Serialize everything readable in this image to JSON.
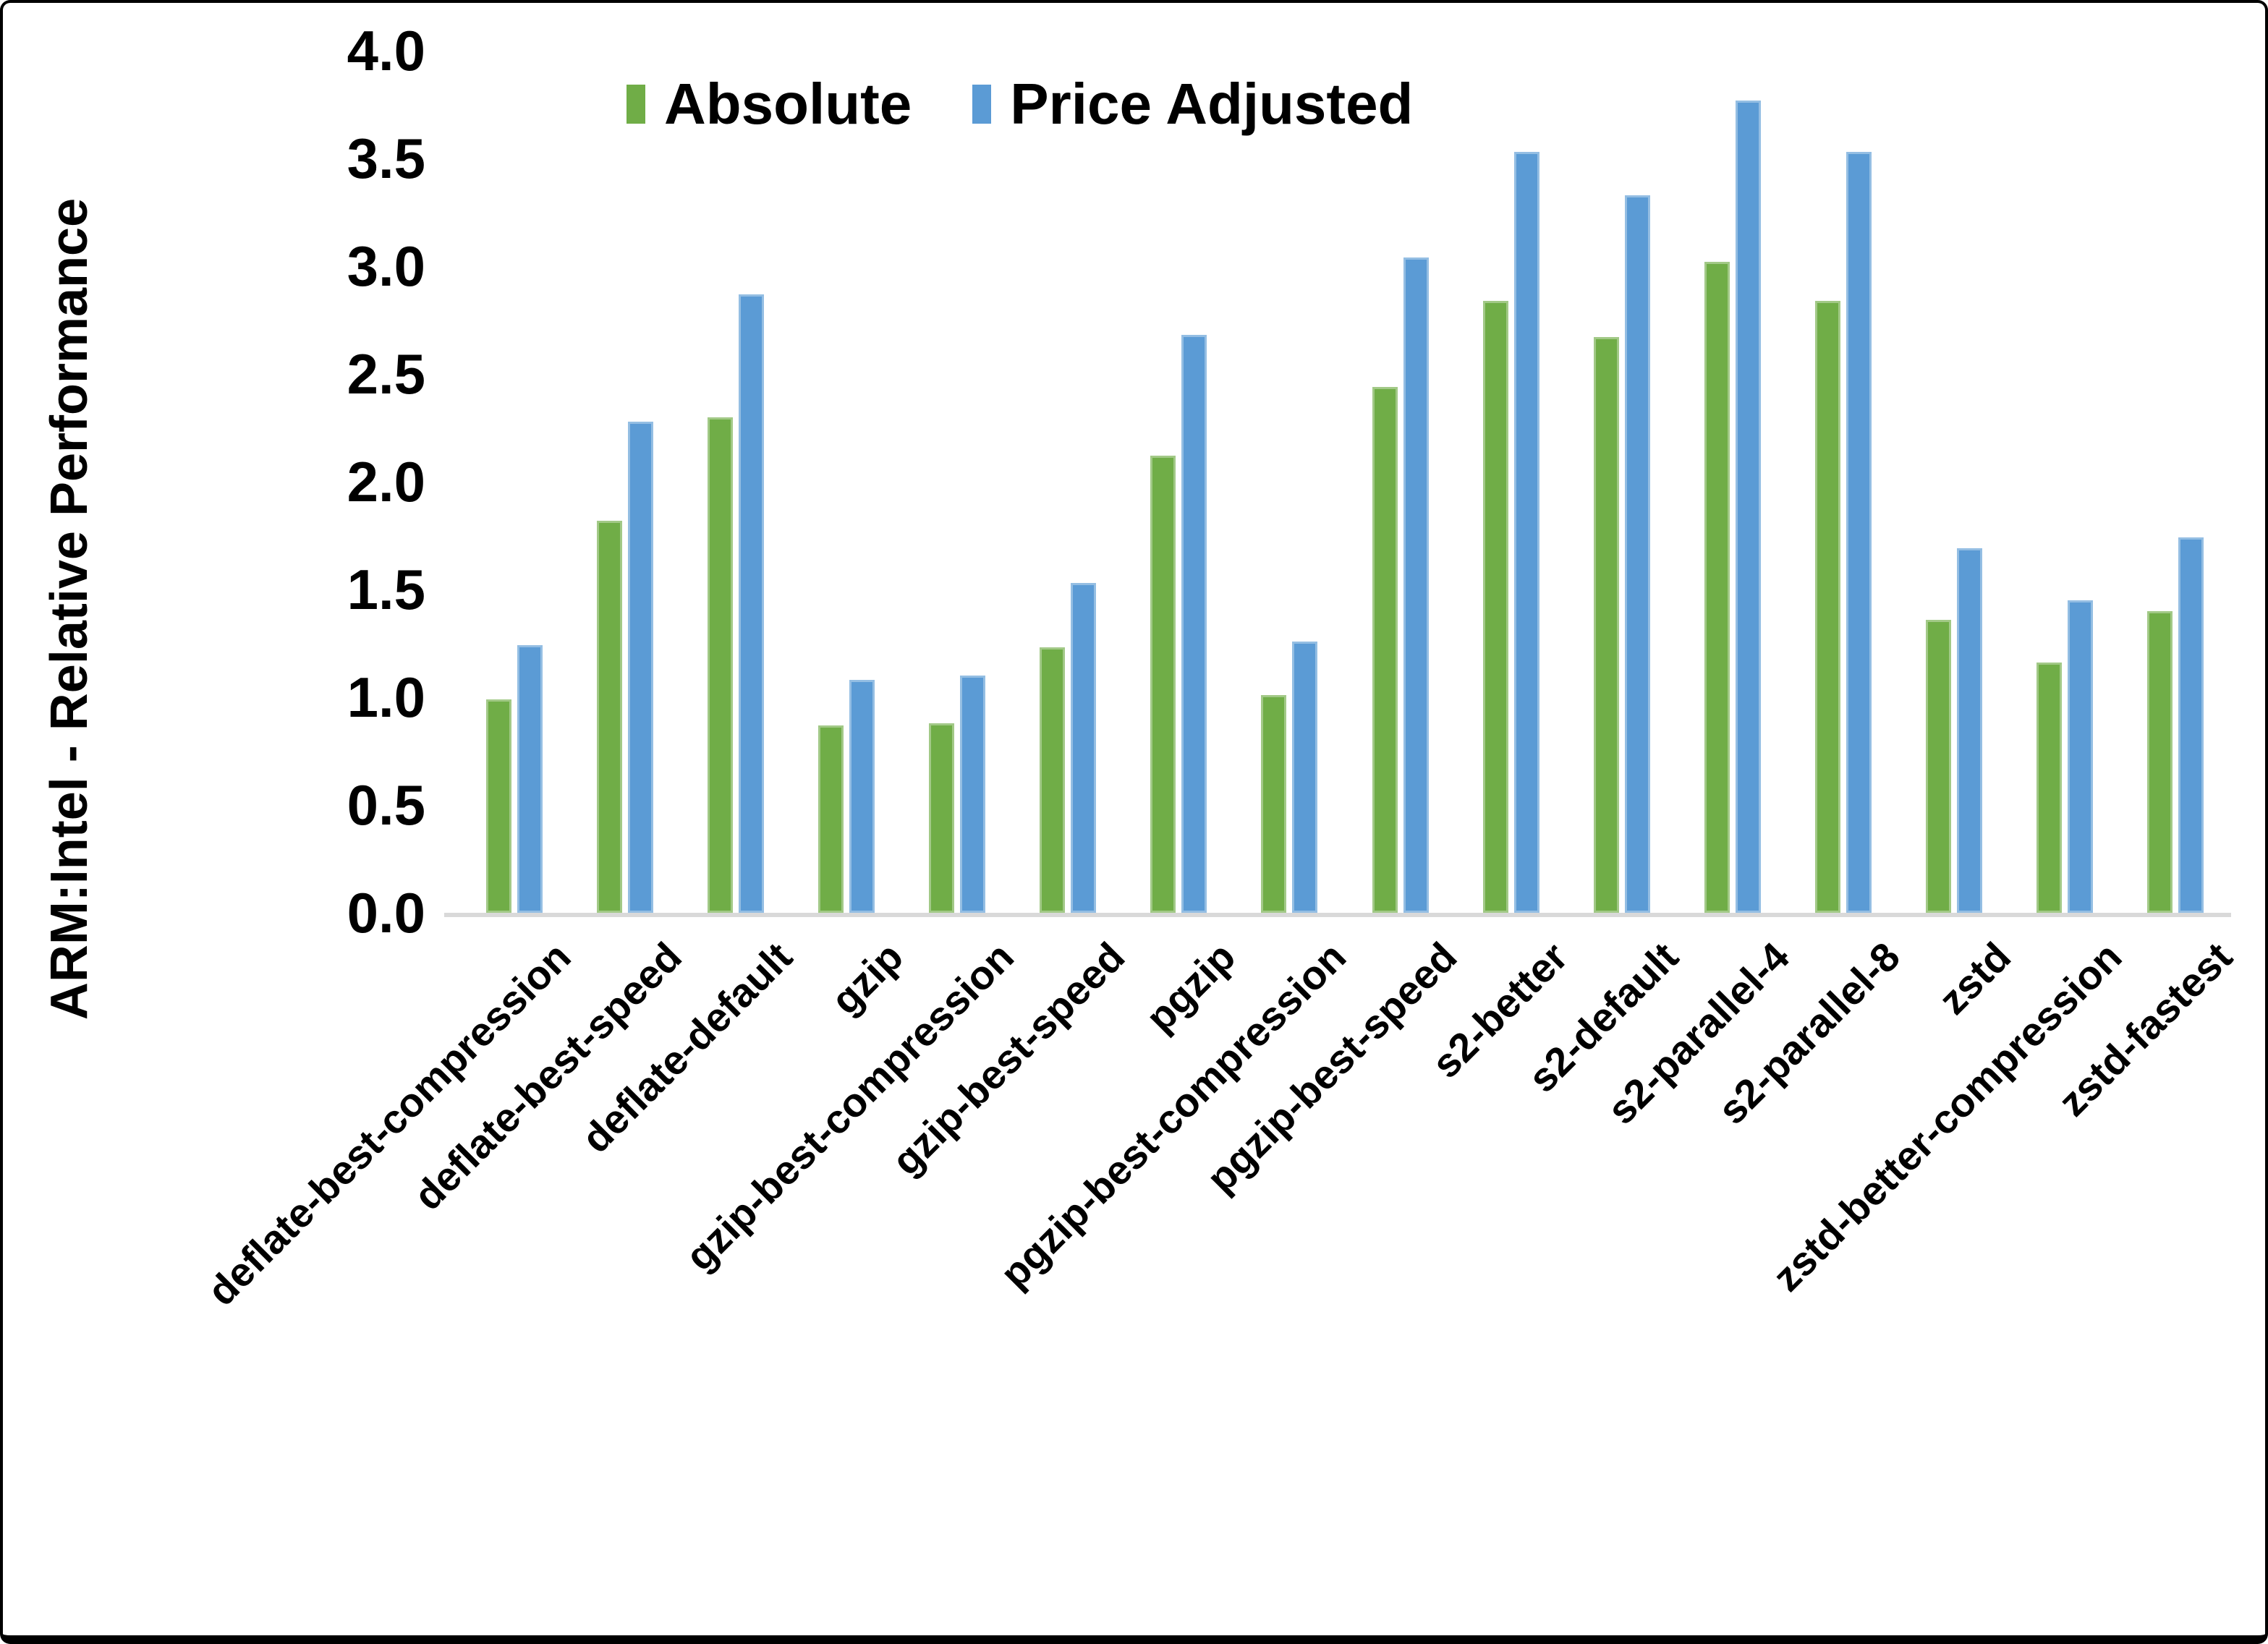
{
  "chart_data": {
    "type": "bar",
    "title": "",
    "xlabel": "",
    "ylabel": "ARM:Intel - Relative Performance",
    "ylim": [
      0.0,
      4.0
    ],
    "ytick_step": 0.5,
    "yticks": [
      "0.0",
      "0.5",
      "1.0",
      "1.5",
      "2.0",
      "2.5",
      "3.0",
      "3.5",
      "4.0"
    ],
    "grid": false,
    "legend_position": "top-center",
    "axis_line_color": "#d9d9d9",
    "categories": [
      "deflate-best-compression",
      "deflate-best-speed",
      "deflate-default",
      "gzip",
      "gzip-best-compression",
      "gzip-best-speed",
      "pgzip",
      "pgzip-best-compression",
      "pgzip-best-speed",
      "s2-better",
      "s2-default",
      "s2-parallel-4",
      "s2-parallel-8",
      "zstd",
      "zstd-better-compression",
      "zstd-fastest"
    ],
    "series": [
      {
        "name": "Absolute",
        "color": "#70AD47",
        "values": [
          0.99,
          1.82,
          2.3,
          0.87,
          0.88,
          1.23,
          2.12,
          1.01,
          2.44,
          2.84,
          2.67,
          3.02,
          2.84,
          1.36,
          1.16,
          1.4
        ]
      },
      {
        "name": "Price Adjusted",
        "color": "#5B9BD5",
        "values": [
          1.24,
          2.28,
          2.87,
          1.08,
          1.1,
          1.53,
          2.68,
          1.26,
          3.04,
          3.53,
          3.33,
          3.77,
          3.53,
          1.69,
          1.45,
          1.74
        ]
      }
    ]
  }
}
